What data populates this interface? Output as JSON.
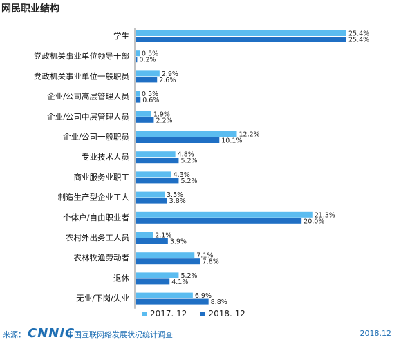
{
  "chart_data": {
    "type": "bar",
    "orientation": "horizontal",
    "title": "网民职业结构",
    "categories": [
      "学生",
      "党政机关事业单位领导干部",
      "党政机关事业单位一般职员",
      "企业/公司高层管理人员",
      "企业/公司中层管理人员",
      "企业/公司一般职员",
      "专业技术人员",
      "商业服务业职工",
      "制造生产型企业工人",
      "个体户/自由职业者",
      "农村外出务工人员",
      "农林牧渔劳动者",
      "退休",
      "无业/下岗/失业"
    ],
    "series": [
      {
        "name": "2017. 12",
        "color": "#5bbcf0",
        "values": [
          25.4,
          0.5,
          2.9,
          0.5,
          1.9,
          12.2,
          4.8,
          4.3,
          3.5,
          21.3,
          2.1,
          7.1,
          5.2,
          6.9
        ]
      },
      {
        "name": "2018. 12",
        "color": "#1f6fc4",
        "values": [
          25.4,
          0.2,
          2.6,
          0.6,
          2.2,
          10.1,
          5.2,
          5.2,
          3.8,
          20.0,
          3.9,
          7.8,
          4.1,
          8.8
        ]
      }
    ],
    "value_suffix": "%",
    "xlim": [
      0,
      25.4
    ],
    "grid": false,
    "legend_position": "bottom"
  },
  "footer": {
    "source_label": "来源：",
    "logo": "CNNIC",
    "source_name": "中国互联网络发展状况统计调查",
    "date": "2018.12"
  }
}
